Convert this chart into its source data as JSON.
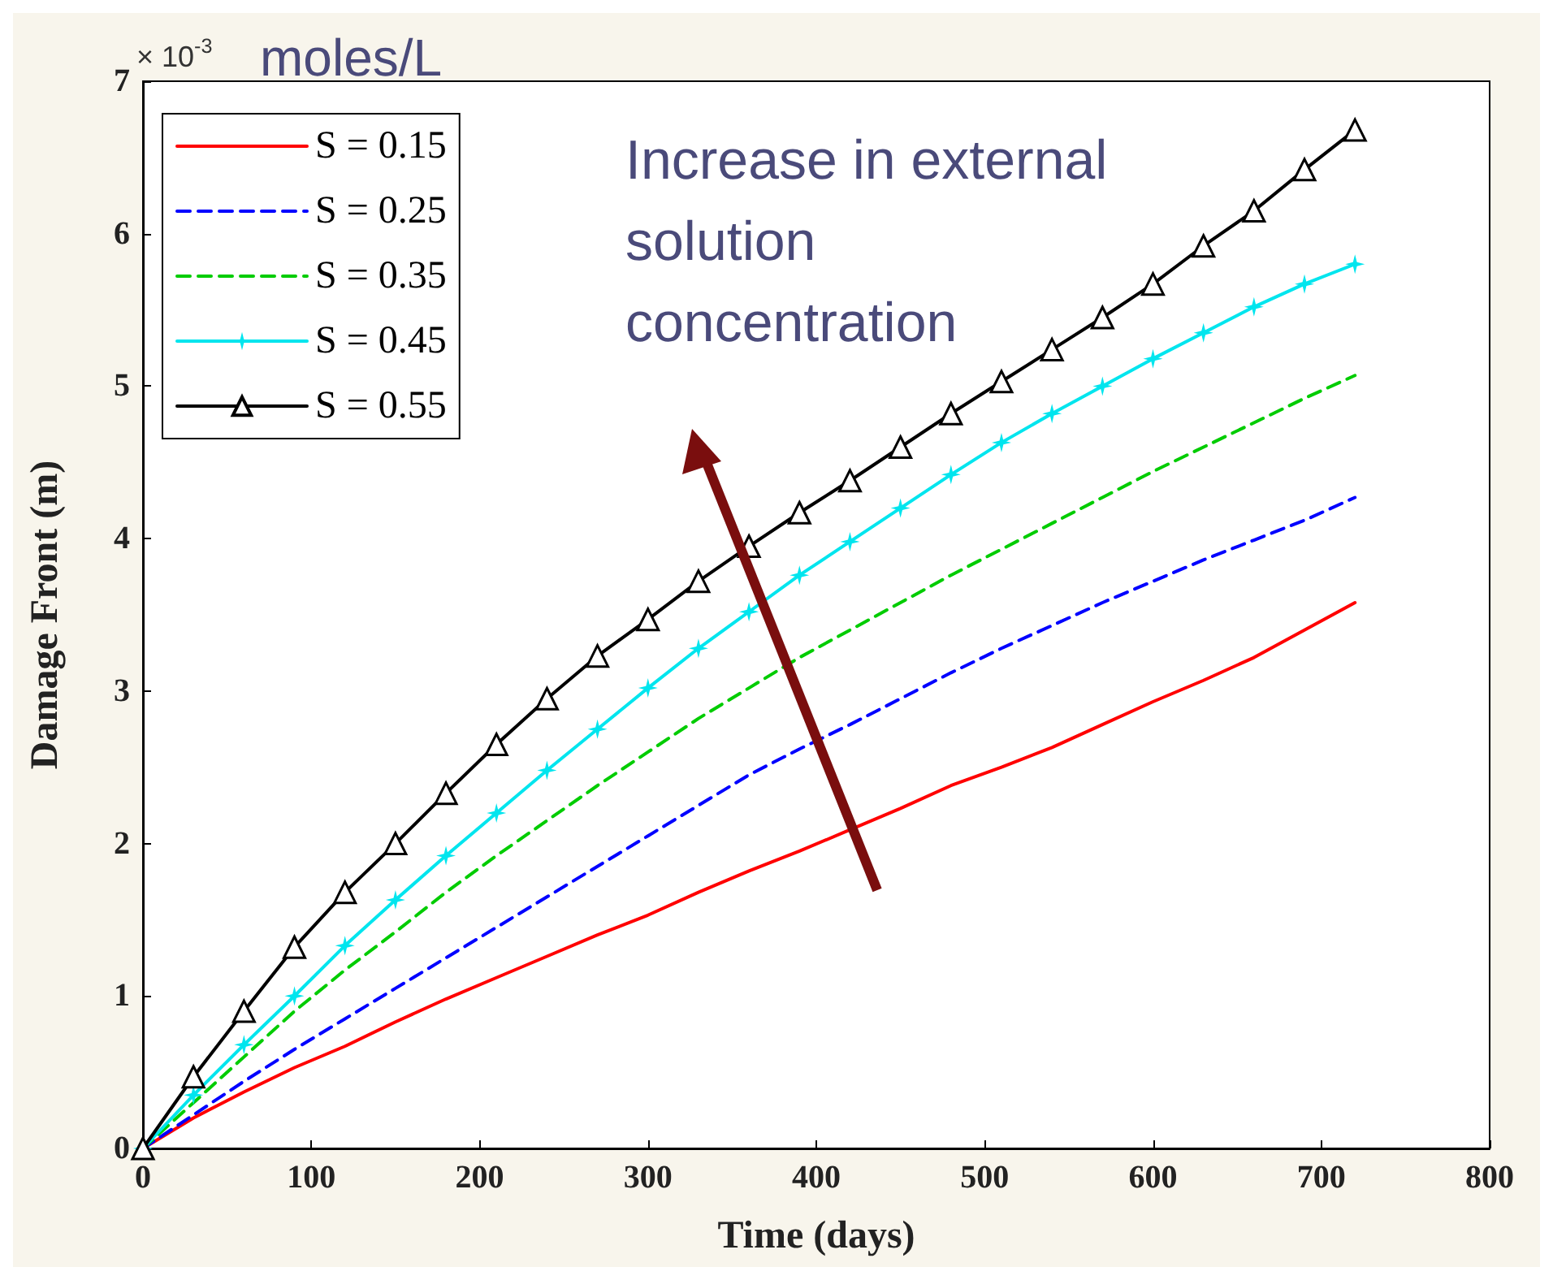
{
  "chart_data": {
    "type": "line",
    "xlabel": "Time (days)",
    "ylabel": "Damage Front (m)",
    "annotations": [
      "× 10$^{-3}$",
      "moles/L",
      "Increase in external solution concentration"
    ],
    "x": [
      0,
      30,
      60,
      90,
      120,
      150,
      180,
      210,
      240,
      270,
      300,
      330,
      360,
      390,
      420,
      450,
      480,
      510,
      540,
      570,
      600,
      630,
      660,
      690,
      720
    ],
    "series": [
      {
        "name": "S = 0.15",
        "color": "#ff0000",
        "line_style": "solid",
        "marker": "none",
        "values": [
          0,
          0.2,
          0.37,
          0.53,
          0.67,
          0.83,
          0.98,
          1.12,
          1.26,
          1.4,
          1.53,
          1.68,
          1.82,
          1.95,
          2.09,
          2.23,
          2.38,
          2.5,
          2.63,
          2.78,
          2.93,
          3.07,
          3.22,
          3.4,
          3.58
        ]
      },
      {
        "name": "S = 0.25",
        "color": "#0000ff",
        "line_style": "dashed",
        "marker": "none",
        "values": [
          0,
          0.22,
          0.44,
          0.65,
          0.85,
          1.05,
          1.25,
          1.45,
          1.65,
          1.85,
          2.05,
          2.25,
          2.45,
          2.62,
          2.78,
          2.95,
          3.12,
          3.28,
          3.43,
          3.58,
          3.72,
          3.86,
          3.99,
          4.12,
          4.27
        ]
      },
      {
        "name": "S = 0.35",
        "color": "#00cc00",
        "line_style": "dashed",
        "marker": "none",
        "values": [
          0,
          0.3,
          0.6,
          0.9,
          1.17,
          1.42,
          1.68,
          1.92,
          2.15,
          2.38,
          2.6,
          2.82,
          3.02,
          3.22,
          3.4,
          3.58,
          3.76,
          3.93,
          4.1,
          4.27,
          4.44,
          4.6,
          4.76,
          4.92,
          5.07
        ]
      },
      {
        "name": "S = 0.45",
        "color": "#00e5ee",
        "line_style": "solid",
        "marker": "star",
        "values": [
          0,
          0.35,
          0.68,
          1.0,
          1.33,
          1.63,
          1.92,
          2.2,
          2.48,
          2.75,
          3.02,
          3.28,
          3.52,
          3.76,
          3.98,
          4.2,
          4.42,
          4.63,
          4.82,
          5.0,
          5.18,
          5.35,
          5.52,
          5.67,
          5.8
        ]
      },
      {
        "name": "S = 0.55",
        "color": "#000000",
        "line_style": "solid",
        "marker": "triangle",
        "values": [
          0,
          0.47,
          0.9,
          1.32,
          1.68,
          2.0,
          2.33,
          2.65,
          2.95,
          3.23,
          3.47,
          3.72,
          3.95,
          4.17,
          4.38,
          4.6,
          4.82,
          5.03,
          5.24,
          5.45,
          5.67,
          5.92,
          6.15,
          6.42,
          6.68
        ]
      }
    ],
    "xlim": [
      0,
      800
    ],
    "xticks": [
      0,
      100,
      200,
      300,
      400,
      500,
      600,
      700,
      800
    ],
    "ylim": [
      0,
      7
    ],
    "yticks": [
      0,
      1,
      2,
      3,
      4,
      5,
      6,
      7
    ],
    "grid": false,
    "legend": "top left"
  }
}
